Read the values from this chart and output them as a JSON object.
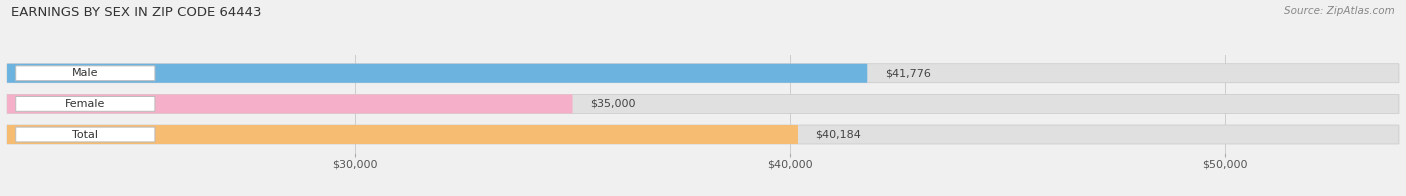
{
  "title": "EARNINGS BY SEX IN ZIP CODE 64443",
  "source": "Source: ZipAtlas.com",
  "categories": [
    "Male",
    "Female",
    "Total"
  ],
  "values": [
    41776,
    35000,
    40184
  ],
  "bar_colors": [
    "#6db3e0",
    "#f5afc8",
    "#f6bc72"
  ],
  "bar_labels": [
    "$41,776",
    "$35,000",
    "$40,184"
  ],
  "xlim": [
    22000,
    54000
  ],
  "xticks": [
    30000,
    40000,
    50000
  ],
  "xtick_labels": [
    "$30,000",
    "$40,000",
    "$50,000"
  ],
  "background_color": "#f0f0f0",
  "bar_bg_color": "#e0e0e0",
  "bar_height": 0.62,
  "figsize": [
    14.06,
    1.96
  ]
}
